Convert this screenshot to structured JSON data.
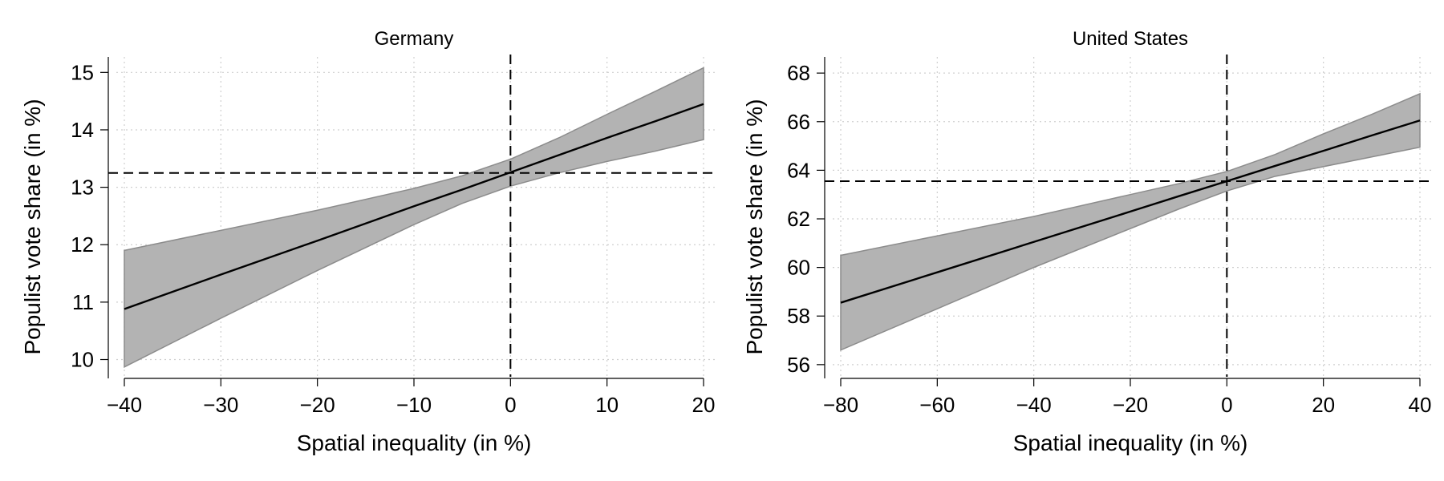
{
  "chart_data": [
    {
      "type": "line",
      "title": "Germany",
      "xlabel": "Spatial inequality (in %)",
      "ylabel": "Populist vote share (in %)",
      "xlim": [
        -40,
        20
      ],
      "ylim": [
        9.7,
        15.2
      ],
      "x_ticks": [
        -40,
        -30,
        -20,
        -10,
        0,
        10,
        20
      ],
      "x_tick_labels": [
        "−40",
        "−30",
        "−20",
        "−10",
        "0",
        "10",
        "20"
      ],
      "y_ticks": [
        10,
        11,
        12,
        13,
        14,
        15
      ],
      "y_tick_labels": [
        "10",
        "11",
        "12",
        "13",
        "14",
        "15"
      ],
      "grid": true,
      "legend": "none",
      "reference_lines": {
        "x": 0,
        "y": 13.25
      },
      "band_color": "#b3b3b3",
      "series": [
        {
          "x": [
            -40,
            -30,
            -20,
            -10,
            -5,
            0,
            5,
            10,
            15,
            20
          ],
          "values": [
            10.88,
            11.48,
            12.07,
            12.67,
            12.96,
            13.26,
            13.56,
            13.86,
            14.15,
            14.45
          ],
          "lower": [
            9.87,
            10.72,
            11.55,
            12.35,
            12.72,
            13.02,
            13.25,
            13.45,
            13.63,
            13.83
          ],
          "upper": [
            11.9,
            12.25,
            12.6,
            12.98,
            13.2,
            13.49,
            13.86,
            14.27,
            14.67,
            15.08
          ]
        }
      ]
    },
    {
      "type": "line",
      "title": "United States",
      "xlabel": "Spatial inequality (in %)",
      "ylabel": "Populist vote share (in %)",
      "xlim": [
        -80,
        40
      ],
      "ylim": [
        55.5,
        68.5
      ],
      "x_ticks": [
        -80,
        -60,
        -40,
        -20,
        0,
        20,
        40
      ],
      "x_tick_labels": [
        "−80",
        "−60",
        "−40",
        "−20",
        "0",
        "20",
        "40"
      ],
      "y_ticks": [
        56,
        58,
        60,
        62,
        64,
        66,
        68
      ],
      "y_tick_labels": [
        "56",
        "58",
        "60",
        "62",
        "64",
        "66",
        "68"
      ],
      "grid": true,
      "legend": "none",
      "reference_lines": {
        "x": 0,
        "y": 63.55
      },
      "band_color": "#b3b3b3",
      "series": [
        {
          "x": [
            -80,
            -60,
            -40,
            -20,
            -10,
            0,
            10,
            20,
            30,
            40
          ],
          "values": [
            58.55,
            59.8,
            61.05,
            62.3,
            62.93,
            63.55,
            64.18,
            64.8,
            65.43,
            66.05
          ],
          "lower": [
            56.6,
            58.3,
            60.0,
            61.6,
            62.4,
            63.15,
            63.75,
            64.15,
            64.55,
            64.95
          ],
          "upper": [
            60.5,
            61.3,
            62.1,
            63.0,
            63.45,
            63.95,
            64.65,
            65.5,
            66.3,
            67.15
          ]
        }
      ]
    }
  ]
}
